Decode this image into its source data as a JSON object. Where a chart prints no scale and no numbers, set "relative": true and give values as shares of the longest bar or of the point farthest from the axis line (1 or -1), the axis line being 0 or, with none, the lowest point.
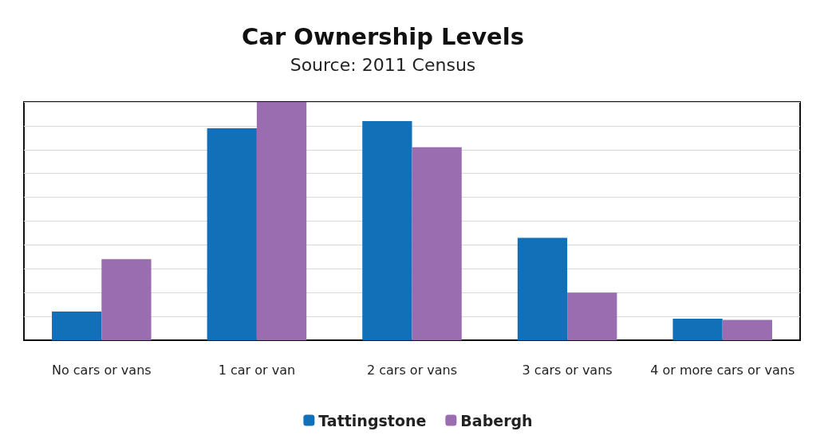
{
  "chart_data": {
    "type": "bar",
    "title": "Car Ownership Levels",
    "subtitle": "Source: 2011 Census",
    "relative": true,
    "categories": [
      "No cars or vans",
      "1 car or van",
      "2 cars or vans",
      "3 cars or vans",
      "4 or more cars or vans"
    ],
    "series": [
      {
        "name": "Tattingstone",
        "color": "#1170b8",
        "values": [
          0.12,
          0.89,
          0.92,
          0.43,
          0.09
        ]
      },
      {
        "name": "Babergh",
        "color": "#9a6cb0",
        "values": [
          0.34,
          1,
          0.81,
          0.2,
          0.085
        ]
      }
    ],
    "grid": "y",
    "legend": "bottom"
  }
}
